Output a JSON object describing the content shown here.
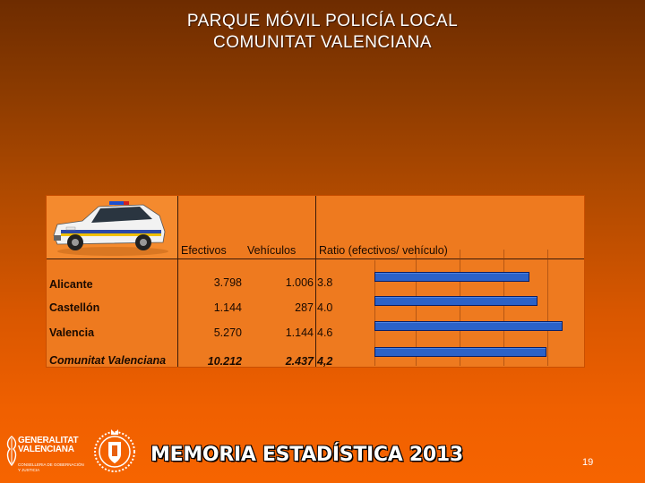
{
  "slide": {
    "title_line1": "PARQUE MÓVIL POLICÍA LOCAL",
    "title_line2": "COMUNITAT VALENCIANA",
    "page_number": "19"
  },
  "table": {
    "headers": {
      "efectivos": "Efectivos",
      "vehiculos": "Vehículos",
      "ratio": "Ratio (efectivos/ vehículo)"
    },
    "rows": [
      {
        "label": "Alicante",
        "efectivos": "3.798",
        "vehiculos": "1.006",
        "ratio": "3.8",
        "ratio_value": 3.8
      },
      {
        "label": "Castellón",
        "efectivos": "1.144",
        "vehiculos": "287",
        "ratio": "4.0",
        "ratio_value": 4.0
      },
      {
        "label": "Valencia",
        "efectivos": "5.270",
        "vehiculos": "1.144",
        "ratio": "4.6",
        "ratio_value": 4.6
      },
      {
        "label": "Comunitat Valenciana",
        "efectivos": "10.212",
        "vehiculos": "2.437",
        "ratio": "4,2",
        "ratio_value": 4.2
      }
    ],
    "bar_color": "#2b62c8"
  },
  "footer": {
    "gv_line1": "GENERALITAT",
    "gv_line2": "VALENCIANA",
    "gv_sub1": "CONSELLERIA DE GOBERNACIÓN",
    "gv_sub2": "Y JUSTICIA",
    "memoria": "MEMORIA ESTADÍSTICA 2013"
  },
  "icons": [
    "police-car-image",
    "generalitat-logo-icon",
    "police-seal-icon"
  ]
}
